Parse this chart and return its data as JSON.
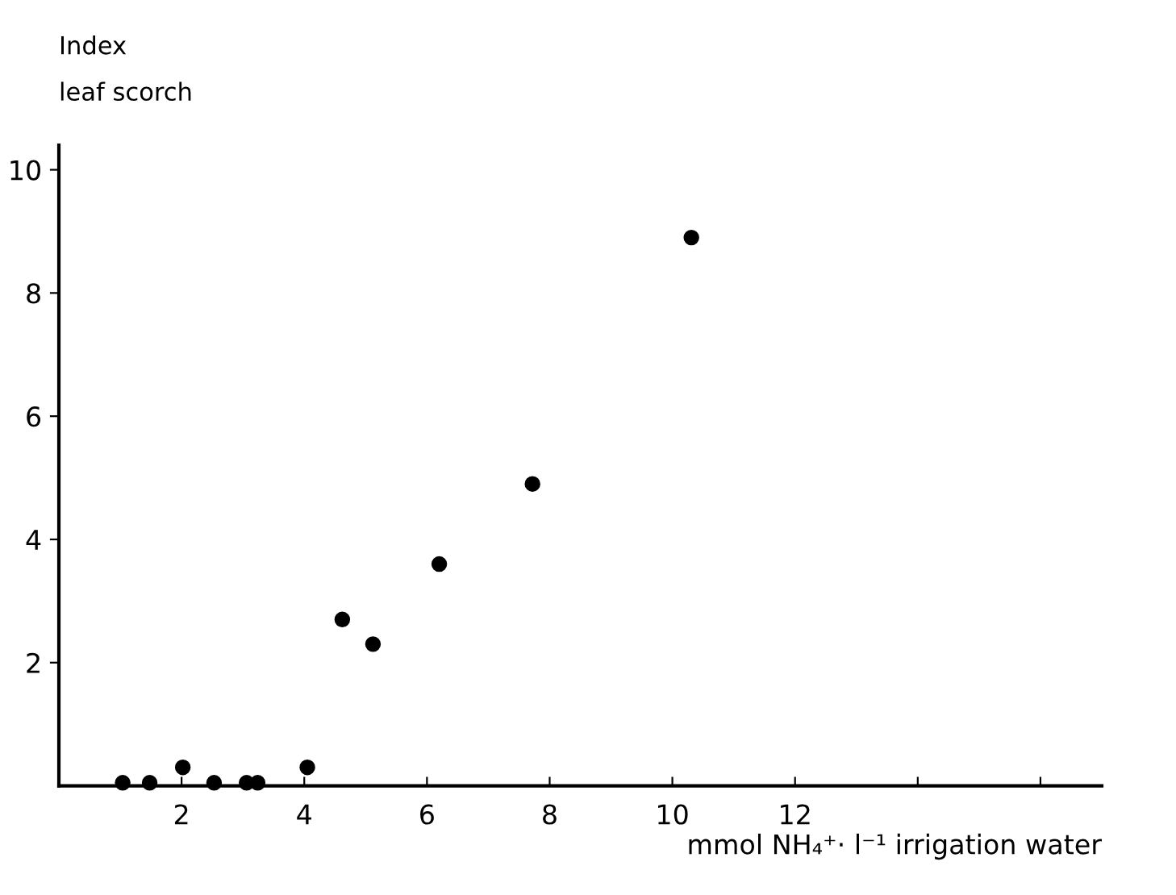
{
  "chart_data": {
    "type": "scatter",
    "ylabel": "Index\nleaf scorch",
    "xlabel": "mmol NH₄⁺· l⁻¹ irrigation water",
    "x": [
      1.04,
      1.48,
      2.02,
      2.53,
      3.06,
      3.24,
      4.05,
      4.62,
      5.12,
      6.2,
      7.72,
      10.31
    ],
    "values": [
      0.05,
      0.05,
      0.3,
      0.05,
      0.05,
      0.05,
      0.3,
      2.7,
      2.3,
      3.6,
      4.9,
      8.9
    ],
    "color": "#000000",
    "marker": "circle",
    "xlim": [
      0,
      17
    ],
    "ylim": [
      0,
      10.4
    ],
    "xticks": [
      2,
      4,
      6,
      8,
      10,
      12,
      {
        "value": 14,
        "label": null
      },
      {
        "value": 16,
        "label": null
      }
    ],
    "yticks": [
      2,
      4,
      6,
      8,
      10
    ],
    "grid": false,
    "legend": false
  }
}
